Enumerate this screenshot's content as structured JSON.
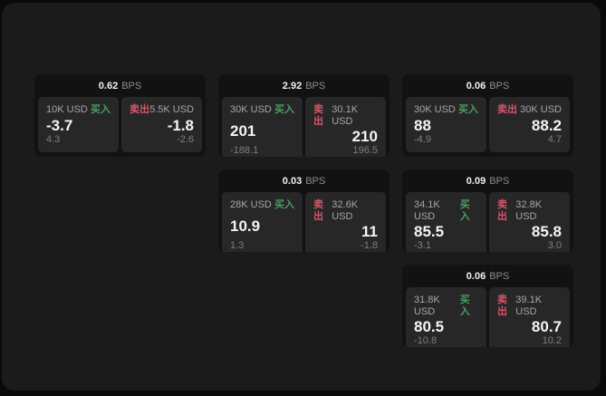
{
  "labels": {
    "bps_suffix": "BPS",
    "buy": "买入",
    "sell": "卖出"
  },
  "colors": {
    "buy_green": "#4a9d64",
    "sell_red": "#d4566a",
    "surface": "#1b1b1b",
    "card": "#121212",
    "panel": "#272727"
  },
  "cards": [
    {
      "bps": "0.62",
      "buy": {
        "size": "10K USD",
        "price": "-3.7",
        "sub": "4.3"
      },
      "sell": {
        "size": "5.5K USD",
        "price": "-1.8",
        "sub": "-2.6"
      }
    },
    {
      "bps": "2.92",
      "buy": {
        "size": "30K USD",
        "price": "201",
        "sub": "-188.1"
      },
      "sell": {
        "size": "30.1K USD",
        "price": "210",
        "sub": "196.5"
      }
    },
    {
      "bps": "0.06",
      "buy": {
        "size": "30K USD",
        "price": "88",
        "sub": "-4.9"
      },
      "sell": {
        "size": "30K USD",
        "price": "88.2",
        "sub": "4.7"
      }
    },
    {
      "bps": "0.03",
      "buy": {
        "size": "28K USD",
        "price": "10.9",
        "sub": "1.3"
      },
      "sell": {
        "size": "32.6K USD",
        "price": "11",
        "sub": "-1.8"
      }
    },
    {
      "bps": "0.09",
      "buy": {
        "size": "34.1K USD",
        "price": "85.5",
        "sub": "-3.1"
      },
      "sell": {
        "size": "32.8K USD",
        "price": "85.8",
        "sub": "3.0"
      }
    },
    {
      "bps": "0.06",
      "buy": {
        "size": "31.8K USD",
        "price": "80.5",
        "sub": "-10.8"
      },
      "sell": {
        "size": "39.1K USD",
        "price": "80.7",
        "sub": "10.2"
      }
    }
  ]
}
